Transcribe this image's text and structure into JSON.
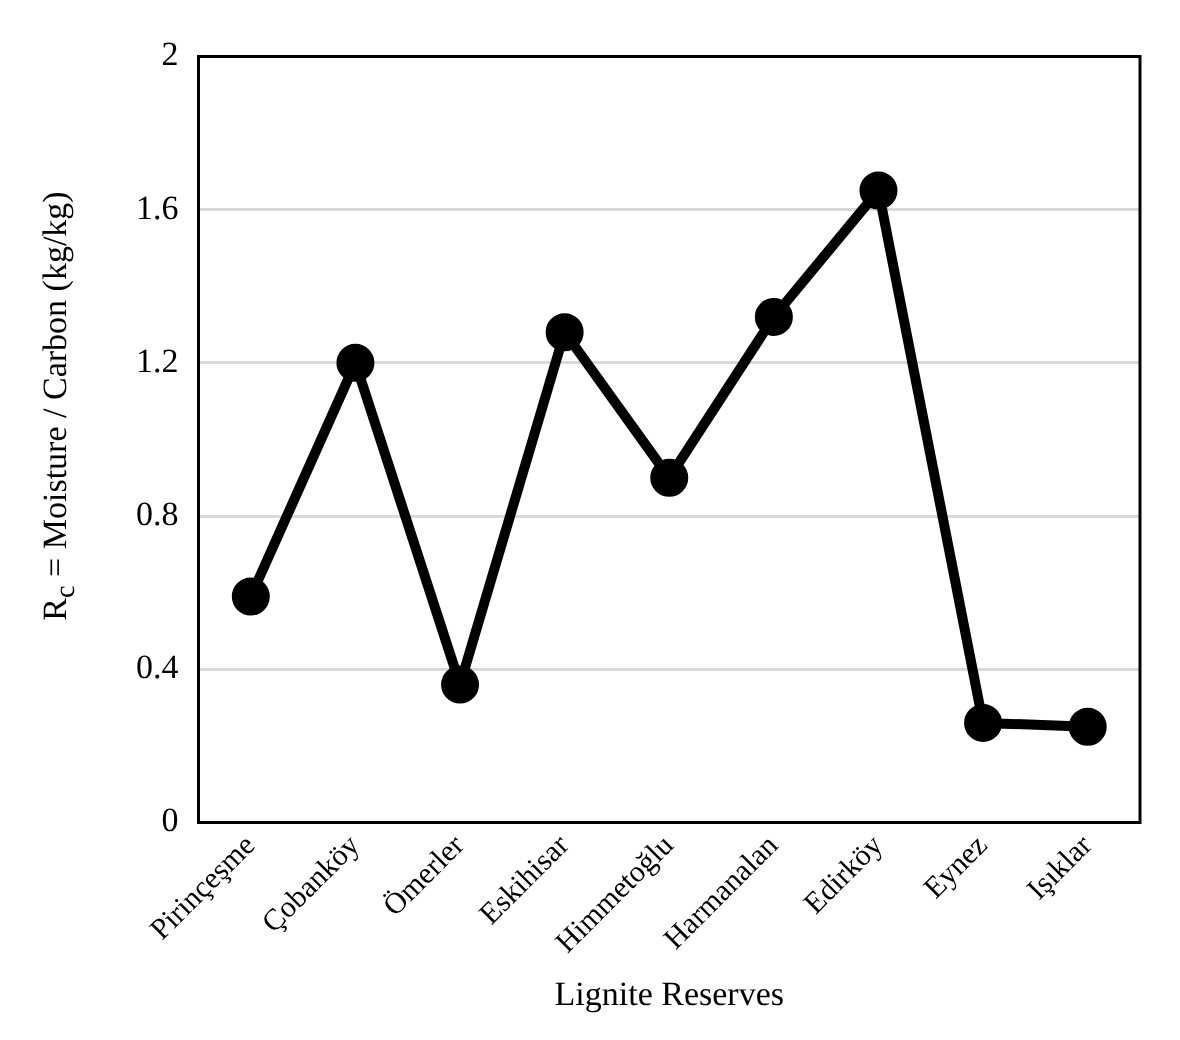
{
  "chart_data": {
    "type": "line",
    "xlabel": "Lignite Reserves",
    "ylabel": "R$_{c}$ = Moisture / Carbon (kg/kg)",
    "categories": [
      "Pirinçeşme",
      "Çobanköy",
      "Ömerler",
      "Eskihisar",
      "Himmetoğlu",
      "Harmanalan",
      "Edirköy",
      "Eynez",
      "Işıklar"
    ],
    "series": [
      {
        "color": "#000000",
        "values": [
          0.59,
          1.2,
          0.36,
          1.28,
          0.9,
          1.32,
          1.65,
          0.26,
          0.25
        ]
      }
    ],
    "ylim": [
      0,
      2
    ],
    "yticks": [
      0,
      0.4,
      0.8,
      1.2,
      1.6,
      2
    ],
    "grid": "y",
    "marker": "circle",
    "line_style": "solid",
    "legend": false
  }
}
